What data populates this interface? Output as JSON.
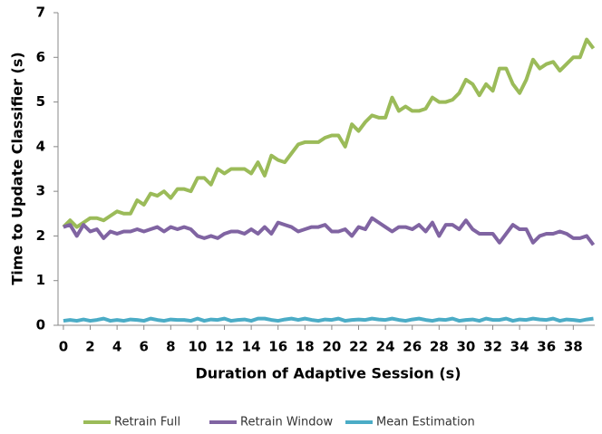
{
  "chart_data": {
    "type": "line",
    "x_label": "Duration of Adaptive Session (s)",
    "y_label": "Time to Update Classifier (s)",
    "x": [
      0,
      0.5,
      1,
      1.5,
      2,
      2.5,
      3,
      3.5,
      4,
      4.5,
      5,
      5.5,
      6,
      6.5,
      7,
      7.5,
      8,
      8.5,
      9,
      9.5,
      10,
      10.5,
      11,
      11.5,
      12,
      12.5,
      13,
      13.5,
      14,
      14.5,
      15,
      15.5,
      16,
      16.5,
      17,
      17.5,
      18,
      18.5,
      19,
      19.5,
      20,
      20.5,
      21,
      21.5,
      22,
      22.5,
      23,
      23.5,
      24,
      24.5,
      25,
      25.5,
      26,
      26.5,
      27,
      27.5,
      28,
      28.5,
      29,
      29.5,
      30,
      30.5,
      31,
      31.5,
      32,
      32.5,
      33,
      33.5,
      34,
      34.5,
      35,
      35.5,
      36,
      36.5,
      37,
      37.5,
      38,
      38.5,
      39,
      39.5
    ],
    "series": [
      {
        "name": "Retrain Full",
        "color": "#9bbb59",
        "values": [
          2.2,
          2.35,
          2.2,
          2.3,
          2.4,
          2.4,
          2.35,
          2.45,
          2.55,
          2.5,
          2.5,
          2.8,
          2.7,
          2.95,
          2.9,
          3.0,
          2.85,
          3.05,
          3.05,
          3.0,
          3.3,
          3.3,
          3.15,
          3.5,
          3.4,
          3.5,
          3.5,
          3.5,
          3.4,
          3.65,
          3.35,
          3.8,
          3.7,
          3.65,
          3.85,
          4.05,
          4.1,
          4.1,
          4.1,
          4.2,
          4.25,
          4.25,
          4.0,
          4.5,
          4.35,
          4.55,
          4.7,
          4.65,
          4.65,
          5.1,
          4.8,
          4.9,
          4.8,
          4.8,
          4.85,
          5.1,
          5.0,
          5.0,
          5.05,
          5.2,
          5.5,
          5.4,
          5.15,
          5.4,
          5.25,
          5.75,
          5.75,
          5.4,
          5.2,
          5.5,
          5.95,
          5.75,
          5.85,
          5.9,
          5.7,
          5.85,
          6.0,
          6.0,
          6.4,
          6.2
        ]
      },
      {
        "name": "Retrain Window",
        "color": "#8064a2",
        "values": [
          2.2,
          2.25,
          2.0,
          2.25,
          2.1,
          2.15,
          1.95,
          2.1,
          2.05,
          2.1,
          2.1,
          2.15,
          2.1,
          2.15,
          2.2,
          2.1,
          2.2,
          2.15,
          2.2,
          2.15,
          2.0,
          1.95,
          2.0,
          1.95,
          2.05,
          2.1,
          2.1,
          2.05,
          2.15,
          2.05,
          2.2,
          2.05,
          2.3,
          2.25,
          2.2,
          2.1,
          2.15,
          2.2,
          2.2,
          2.25,
          2.1,
          2.1,
          2.15,
          2.0,
          2.2,
          2.15,
          2.4,
          2.3,
          2.2,
          2.1,
          2.2,
          2.2,
          2.15,
          2.25,
          2.1,
          2.3,
          2.0,
          2.25,
          2.25,
          2.15,
          2.35,
          2.15,
          2.05,
          2.05,
          2.05,
          1.85,
          2.05,
          2.25,
          2.15,
          2.15,
          1.85,
          2.0,
          2.05,
          2.05,
          2.1,
          2.05,
          1.95,
          1.95,
          2.0,
          1.8
        ]
      },
      {
        "name": "Mean Estimation",
        "color": "#4bacc6",
        "values": [
          0.1,
          0.12,
          0.1,
          0.13,
          0.1,
          0.12,
          0.15,
          0.1,
          0.12,
          0.1,
          0.13,
          0.12,
          0.1,
          0.15,
          0.12,
          0.1,
          0.13,
          0.12,
          0.12,
          0.1,
          0.15,
          0.1,
          0.13,
          0.12,
          0.15,
          0.1,
          0.12,
          0.13,
          0.1,
          0.15,
          0.15,
          0.12,
          0.1,
          0.13,
          0.15,
          0.12,
          0.15,
          0.12,
          0.1,
          0.13,
          0.12,
          0.15,
          0.1,
          0.12,
          0.13,
          0.12,
          0.15,
          0.13,
          0.12,
          0.15,
          0.12,
          0.1,
          0.13,
          0.15,
          0.12,
          0.1,
          0.13,
          0.12,
          0.15,
          0.1,
          0.12,
          0.13,
          0.1,
          0.15,
          0.12,
          0.12,
          0.15,
          0.1,
          0.13,
          0.12,
          0.15,
          0.13,
          0.12,
          0.15,
          0.1,
          0.13,
          0.12,
          0.1,
          0.13,
          0.15
        ]
      }
    ],
    "xlim": [
      -0.4,
      39.6
    ],
    "xticks": [
      0,
      2,
      4,
      6,
      8,
      10,
      12,
      14,
      16,
      18,
      20,
      22,
      24,
      26,
      28,
      30,
      32,
      34,
      36,
      38
    ],
    "ylim": [
      0,
      7
    ],
    "yticks": [
      0,
      1,
      2,
      3,
      4,
      5,
      6,
      7
    ],
    "grid": false,
    "legend": "bottom"
  }
}
